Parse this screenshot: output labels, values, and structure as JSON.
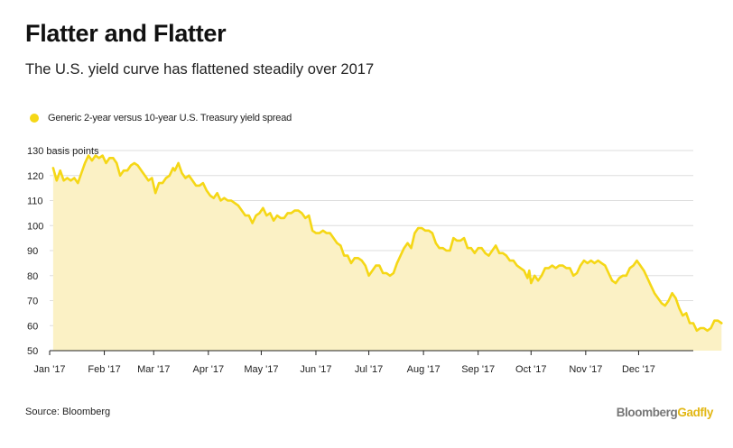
{
  "header": {
    "title": "Flatter and Flatter",
    "subtitle": "The U.S. yield curve has flattened steadily over 2017"
  },
  "legend": {
    "label": "Generic 2-year versus 10-year U.S. Treasury yield spread"
  },
  "footer": {
    "source": "Source: Bloomberg",
    "brand_primary": "Bloomberg",
    "brand_secondary": "Gadfly"
  },
  "colors": {
    "line": "#f5d716",
    "fill": "#fbf1c5",
    "grid": "#dddddd",
    "axis": "#222222"
  },
  "chart_data": {
    "type": "area",
    "title": "Flatter and Flatter",
    "subtitle": "The U.S. yield curve has flattened steadily over 2017",
    "ylabel": "basis points",
    "ylim": [
      50,
      130
    ],
    "yticks": [
      50,
      60,
      70,
      80,
      90,
      100,
      110,
      120,
      130
    ],
    "ytick_labels": [
      "50",
      "60",
      "70",
      "80",
      "90",
      "100",
      "110",
      "120",
      "130 basis points"
    ],
    "xticks": [
      {
        "label": "Jan '17",
        "day": 0
      },
      {
        "label": "Feb '17",
        "day": 31
      },
      {
        "label": "Mar '17",
        "day": 59
      },
      {
        "label": "Apr '17",
        "day": 90
      },
      {
        "label": "May '17",
        "day": 120
      },
      {
        "label": "Jun '17",
        "day": 151
      },
      {
        "label": "Jul '17",
        "day": 181
      },
      {
        "label": "Aug '17",
        "day": 212
      },
      {
        "label": "Sep '17",
        "day": 243
      },
      {
        "label": "Oct '17",
        "day": 273
      },
      {
        "label": "Nov '17",
        "day": 304
      },
      {
        "label": "Dec '17",
        "day": 334
      }
    ],
    "grid": true,
    "legend_position": "top-left",
    "series": [
      {
        "name": "Generic 2-year versus 10-year U.S. Treasury yield spread",
        "points": [
          [
            2,
            123
          ],
          [
            4,
            118
          ],
          [
            6,
            122
          ],
          [
            8,
            118
          ],
          [
            10,
            119
          ],
          [
            12,
            118
          ],
          [
            14,
            119
          ],
          [
            16,
            117
          ],
          [
            18,
            121
          ],
          [
            20,
            125
          ],
          [
            22,
            128
          ],
          [
            24,
            126
          ],
          [
            26,
            128
          ],
          [
            28,
            127
          ],
          [
            30,
            128
          ],
          [
            32,
            125
          ],
          [
            34,
            127
          ],
          [
            36,
            127
          ],
          [
            38,
            125
          ],
          [
            40,
            120
          ],
          [
            42,
            122
          ],
          [
            44,
            122
          ],
          [
            46,
            124
          ],
          [
            48,
            125
          ],
          [
            50,
            124
          ],
          [
            52,
            122
          ],
          [
            54,
            120
          ],
          [
            56,
            118
          ],
          [
            58,
            119
          ],
          [
            60,
            113
          ],
          [
            62,
            117
          ],
          [
            64,
            117
          ],
          [
            66,
            119
          ],
          [
            68,
            120
          ],
          [
            70,
            123
          ],
          [
            71,
            122
          ],
          [
            73,
            125
          ],
          [
            75,
            121
          ],
          [
            77,
            119
          ],
          [
            79,
            120
          ],
          [
            81,
            118
          ],
          [
            83,
            116
          ],
          [
            85,
            116
          ],
          [
            87,
            117
          ],
          [
            89,
            114
          ],
          [
            91,
            112
          ],
          [
            93,
            111
          ],
          [
            95,
            113
          ],
          [
            97,
            110
          ],
          [
            99,
            111
          ],
          [
            101,
            110
          ],
          [
            103,
            110
          ],
          [
            105,
            109
          ],
          [
            107,
            108
          ],
          [
            109,
            106
          ],
          [
            111,
            104
          ],
          [
            113,
            104
          ],
          [
            115,
            101
          ],
          [
            117,
            104
          ],
          [
            119,
            105
          ],
          [
            121,
            107
          ],
          [
            123,
            104
          ],
          [
            125,
            105
          ],
          [
            127,
            102
          ],
          [
            129,
            104
          ],
          [
            131,
            103
          ],
          [
            133,
            103
          ],
          [
            135,
            105
          ],
          [
            137,
            105
          ],
          [
            139,
            106
          ],
          [
            141,
            106
          ],
          [
            143,
            105
          ],
          [
            145,
            103
          ],
          [
            147,
            104
          ],
          [
            149,
            98
          ],
          [
            151,
            97
          ],
          [
            153,
            97
          ],
          [
            155,
            98
          ],
          [
            157,
            97
          ],
          [
            159,
            97
          ],
          [
            161,
            95
          ],
          [
            163,
            93
          ],
          [
            165,
            92
          ],
          [
            167,
            88
          ],
          [
            169,
            88
          ],
          [
            171,
            85
          ],
          [
            173,
            87
          ],
          [
            175,
            87
          ],
          [
            177,
            86
          ],
          [
            179,
            84
          ],
          [
            181,
            80
          ],
          [
            183,
            82
          ],
          [
            185,
            84
          ],
          [
            187,
            84
          ],
          [
            189,
            81
          ],
          [
            191,
            81
          ],
          [
            193,
            80
          ],
          [
            195,
            81
          ],
          [
            197,
            85
          ],
          [
            199,
            88
          ],
          [
            201,
            91
          ],
          [
            203,
            93
          ],
          [
            205,
            91
          ],
          [
            207,
            97
          ],
          [
            209,
            99
          ],
          [
            211,
            99
          ],
          [
            213,
            98
          ],
          [
            215,
            98
          ],
          [
            217,
            97
          ],
          [
            219,
            93
          ],
          [
            221,
            91
          ],
          [
            223,
            91
          ],
          [
            225,
            90
          ],
          [
            227,
            90
          ],
          [
            229,
            95
          ],
          [
            231,
            94
          ],
          [
            233,
            94
          ],
          [
            235,
            95
          ],
          [
            237,
            91
          ],
          [
            239,
            91
          ],
          [
            241,
            89
          ],
          [
            243,
            91
          ],
          [
            245,
            91
          ],
          [
            247,
            89
          ],
          [
            249,
            88
          ],
          [
            251,
            90
          ],
          [
            253,
            92
          ],
          [
            255,
            89
          ],
          [
            257,
            89
          ],
          [
            259,
            88
          ],
          [
            261,
            86
          ],
          [
            263,
            86
          ],
          [
            265,
            84
          ],
          [
            267,
            83
          ],
          [
            269,
            82
          ],
          [
            271,
            79
          ],
          [
            272,
            82
          ],
          [
            273,
            77
          ],
          [
            275,
            80
          ],
          [
            277,
            78
          ],
          [
            279,
            80
          ],
          [
            281,
            83
          ],
          [
            283,
            83
          ],
          [
            285,
            84
          ],
          [
            287,
            83
          ],
          [
            289,
            84
          ],
          [
            291,
            84
          ],
          [
            293,
            83
          ],
          [
            295,
            83
          ],
          [
            297,
            80
          ],
          [
            299,
            81
          ],
          [
            301,
            84
          ],
          [
            303,
            86
          ],
          [
            305,
            85
          ],
          [
            307,
            86
          ],
          [
            309,
            85
          ],
          [
            311,
            86
          ],
          [
            313,
            85
          ],
          [
            315,
            84
          ],
          [
            317,
            81
          ],
          [
            319,
            78
          ],
          [
            321,
            77
          ],
          [
            323,
            79
          ],
          [
            325,
            80
          ],
          [
            327,
            80
          ],
          [
            329,
            83
          ],
          [
            331,
            84
          ],
          [
            333,
            86
          ],
          [
            335,
            84
          ],
          [
            337,
            82
          ],
          [
            339,
            79
          ],
          [
            341,
            76
          ],
          [
            343,
            73
          ],
          [
            345,
            71
          ],
          [
            347,
            69
          ],
          [
            349,
            68
          ],
          [
            351,
            70
          ],
          [
            353,
            73
          ],
          [
            355,
            71
          ],
          [
            357,
            67
          ],
          [
            359,
            64
          ],
          [
            361,
            65
          ],
          [
            363,
            61
          ],
          [
            365,
            61
          ],
          [
            367,
            58
          ],
          [
            369,
            59
          ],
          [
            371,
            59
          ],
          [
            373,
            58
          ],
          [
            375,
            59
          ],
          [
            377,
            62
          ],
          [
            379,
            62
          ],
          [
            381,
            61
          ]
        ]
      }
    ]
  }
}
